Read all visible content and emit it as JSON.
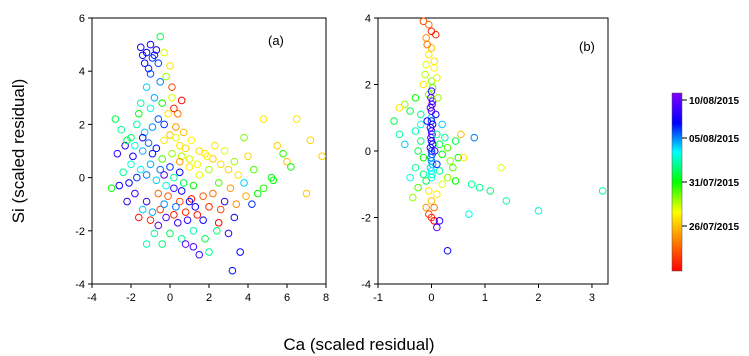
{
  "xlabel": "Ca (scaled residual)",
  "ylabel": "Si (scaled residual)",
  "colorbar": {
    "ticks": [
      "10/08/2015",
      "05/08/2015",
      "31/07/2015",
      "26/07/2015"
    ],
    "colors": [
      "#ff0000",
      "#ff8000",
      "#ffff00",
      "#00ff00",
      "#00ffff",
      "#0000ff",
      "#8000ff"
    ]
  },
  "chart_data": [
    {
      "type": "scatter",
      "panel_label": "(a)",
      "xlim": [
        -4,
        8
      ],
      "ylim": [
        -4,
        6
      ],
      "xticks": [
        "-4",
        "-2",
        "0",
        "2",
        "4",
        "6",
        "8"
      ],
      "yticks": [
        "-4",
        "-2",
        "0",
        "2",
        "4",
        "6"
      ],
      "grid": false,
      "points_note": "color encodes date position t (0 = 26/07/2015 red, 1 = 10/08/2015 violet)",
      "points": [
        [
          -1.5,
          4.9,
          0.85
        ],
        [
          -1.2,
          4.7,
          0.84
        ],
        [
          -1.0,
          5.0,
          0.86
        ],
        [
          -0.8,
          4.6,
          0.82
        ],
        [
          -1.3,
          4.3,
          0.83
        ],
        [
          -0.9,
          4.5,
          0.8
        ],
        [
          -1.1,
          4.1,
          0.81
        ],
        [
          -0.7,
          4.8,
          0.87
        ],
        [
          -1.4,
          4.6,
          0.84
        ],
        [
          -0.6,
          4.3,
          0.79
        ],
        [
          -1.0,
          3.9,
          0.78
        ],
        [
          -0.5,
          5.3,
          0.55
        ],
        [
          -0.3,
          4.7,
          0.35
        ],
        [
          0.0,
          4.2,
          0.3
        ],
        [
          -0.2,
          3.8,
          0.4
        ],
        [
          0.1,
          3.4,
          0.1
        ],
        [
          0.2,
          2.6,
          0.05
        ],
        [
          0.4,
          2.4,
          0.15
        ],
        [
          -0.5,
          3.6,
          0.75
        ],
        [
          -1.2,
          3.4,
          0.7
        ],
        [
          -0.8,
          3.0,
          0.72
        ],
        [
          -1.5,
          2.8,
          0.6
        ],
        [
          -1.0,
          2.6,
          0.65
        ],
        [
          -0.4,
          2.8,
          0.5
        ],
        [
          -2.8,
          2.2,
          0.55
        ],
        [
          -2.5,
          1.8,
          0.6
        ],
        [
          -2.0,
          1.5,
          0.58
        ],
        [
          -1.7,
          2.0,
          0.62
        ],
        [
          -1.3,
          1.7,
          0.7
        ],
        [
          -0.9,
          1.9,
          0.74
        ],
        [
          -0.6,
          2.2,
          0.78
        ],
        [
          -0.3,
          2.0,
          0.8
        ],
        [
          -1.8,
          1.2,
          0.66
        ],
        [
          -1.4,
          1.0,
          0.72
        ],
        [
          -1.1,
          1.3,
          0.76
        ],
        [
          -0.7,
          1.1,
          0.82
        ],
        [
          -0.3,
          1.4,
          0.3
        ],
        [
          0.0,
          1.6,
          0.25
        ],
        [
          0.3,
          1.5,
          0.35
        ],
        [
          0.5,
          1.2,
          0.3
        ],
        [
          0.8,
          1.1,
          0.28
        ],
        [
          1.1,
          1.4,
          0.32
        ],
        [
          1.5,
          1.0,
          0.28
        ],
        [
          1.8,
          0.9,
          0.3
        ],
        [
          2.2,
          0.7,
          0.26
        ],
        [
          2.6,
          0.5,
          0.29
        ],
        [
          3.0,
          0.3,
          0.27
        ],
        [
          3.5,
          0.1,
          0.3
        ],
        [
          4.0,
          0.8,
          0.28
        ],
        [
          4.8,
          2.2,
          0.3
        ],
        [
          5.5,
          1.2,
          0.27
        ],
        [
          6.0,
          0.6,
          0.25
        ],
        [
          6.5,
          2.2,
          0.3
        ],
        [
          7.2,
          1.4,
          0.28
        ],
        [
          7.8,
          0.8,
          0.27
        ],
        [
          8.2,
          0.1,
          0.28
        ],
        [
          7.0,
          -0.6,
          0.26
        ],
        [
          6.2,
          0.4,
          0.5
        ],
        [
          5.2,
          0.0,
          0.52
        ],
        [
          4.5,
          -0.6,
          0.5
        ],
        [
          5.8,
          0.9,
          0.48
        ],
        [
          3.8,
          -0.2,
          0.7
        ],
        [
          4.2,
          -1.0,
          0.8
        ],
        [
          3.3,
          -1.5,
          0.85
        ],
        [
          2.8,
          -0.9,
          0.9
        ],
        [
          3.0,
          -2.1,
          0.88
        ],
        [
          3.6,
          -2.8,
          0.84
        ],
        [
          3.2,
          -3.5,
          0.82
        ],
        [
          2.0,
          -2.8,
          0.6
        ],
        [
          1.8,
          -2.3,
          0.55
        ],
        [
          2.4,
          -2.0,
          0.58
        ],
        [
          1.2,
          -2.0,
          0.62
        ],
        [
          0.6,
          -2.3,
          0.6
        ],
        [
          0.0,
          -2.1,
          0.56
        ],
        [
          -0.4,
          -2.5,
          0.58
        ],
        [
          -0.8,
          -2.1,
          0.6
        ],
        [
          -1.2,
          -2.5,
          0.62
        ],
        [
          1.5,
          -2.9,
          0.9
        ],
        [
          -1.0,
          -1.6,
          0.05
        ],
        [
          -1.6,
          -1.5,
          0.02
        ],
        [
          -0.5,
          -1.2,
          0.08
        ],
        [
          0.2,
          -1.4,
          0.04
        ],
        [
          0.8,
          -1.3,
          0.06
        ],
        [
          1.4,
          -1.4,
          0.03
        ],
        [
          2.0,
          -1.1,
          0.05
        ],
        [
          2.5,
          -1.7,
          0.0
        ],
        [
          1.1,
          -0.8,
          0.02
        ],
        [
          0.5,
          -0.9,
          0.1
        ],
        [
          -0.1,
          -0.7,
          0.12
        ],
        [
          -0.6,
          -0.6,
          0.14
        ],
        [
          -1.2,
          -0.9,
          0.9
        ],
        [
          -1.8,
          -0.6,
          0.92
        ],
        [
          -2.2,
          -0.9,
          0.88
        ],
        [
          -2.6,
          -0.3,
          0.86
        ],
        [
          -3.0,
          -0.4,
          0.5
        ],
        [
          -2.4,
          0.2,
          0.6
        ],
        [
          -2.0,
          0.5,
          0.64
        ],
        [
          -1.5,
          0.3,
          0.68
        ],
        [
          -1.0,
          0.5,
          0.72
        ],
        [
          -0.5,
          0.3,
          0.76
        ],
        [
          0.0,
          0.4,
          0.8
        ],
        [
          0.5,
          0.2,
          0.84
        ],
        [
          1.0,
          0.4,
          0.3
        ],
        [
          1.5,
          0.1,
          0.35
        ],
        [
          2.0,
          0.3,
          0.4
        ],
        [
          2.5,
          -0.2,
          0.45
        ],
        [
          1.2,
          -0.3,
          0.5
        ],
        [
          0.7,
          -0.2,
          0.55
        ],
        [
          0.2,
          0.0,
          0.6
        ],
        [
          -0.2,
          -0.3,
          0.65
        ],
        [
          -0.7,
          -0.1,
          0.7
        ],
        [
          -1.2,
          0.1,
          0.75
        ],
        [
          -1.7,
          0.0,
          0.8
        ],
        [
          -2.1,
          -0.2,
          0.85
        ],
        [
          -2.7,
          0.9,
          0.9
        ],
        [
          -2.3,
          1.2,
          0.88
        ],
        [
          -1.9,
          0.8,
          0.86
        ],
        [
          -1.4,
          1.5,
          0.84
        ],
        [
          -0.9,
          0.9,
          0.82
        ],
        [
          -0.4,
          0.7,
          0.45
        ],
        [
          0.1,
          0.9,
          0.4
        ],
        [
          0.6,
          0.8,
          0.38
        ],
        [
          1.0,
          0.7,
          0.36
        ],
        [
          1.4,
          0.5,
          0.34
        ],
        [
          1.9,
          0.8,
          0.32
        ],
        [
          2.3,
          1.2,
          0.3
        ],
        [
          2.8,
          1.0,
          0.35
        ],
        [
          3.3,
          0.6,
          0.4
        ],
        [
          3.8,
          1.5,
          0.42
        ],
        [
          4.3,
          0.3,
          0.45
        ],
        [
          4.8,
          -0.4,
          0.48
        ],
        [
          5.3,
          -0.1,
          0.5
        ],
        [
          2.2,
          -0.6,
          0.15
        ],
        [
          1.7,
          -0.7,
          0.12
        ],
        [
          2.6,
          -1.2,
          0.1
        ],
        [
          3.1,
          -0.4,
          0.2
        ],
        [
          3.4,
          -1.0,
          0.18
        ],
        [
          3.9,
          -0.7,
          0.22
        ],
        [
          -0.6,
          -1.8,
          0.95
        ],
        [
          -0.2,
          -1.5,
          0.92
        ],
        [
          0.4,
          -1.7,
          0.9
        ],
        [
          0.9,
          -1.6,
          0.88
        ],
        [
          1.3,
          -1.1,
          0.86
        ],
        [
          1.7,
          -1.6,
          0.84
        ],
        [
          0.8,
          -2.5,
          0.95
        ],
        [
          1.2,
          -2.6,
          0.92
        ],
        [
          -1.4,
          -1.2,
          0.7
        ],
        [
          -0.9,
          -1.3,
          0.72
        ],
        [
          -0.3,
          -1.0,
          0.74
        ],
        [
          0.3,
          -1.1,
          0.76
        ],
        [
          0.5,
          0.6,
          0.2
        ],
        [
          0.3,
          1.9,
          0.2
        ],
        [
          0.7,
          1.7,
          0.25
        ],
        [
          -0.1,
          2.4,
          0.3
        ],
        [
          0.1,
          3.0,
          0.35
        ],
        [
          0.6,
          2.9,
          0.0
        ],
        [
          -0.3,
          0.1,
          0.95
        ],
        [
          0.2,
          -0.4,
          0.9
        ],
        [
          0.6,
          -0.5,
          0.86
        ],
        [
          1.0,
          -0.9,
          0.83
        ],
        [
          -2.2,
          1.4,
          0.55
        ],
        [
          -1.6,
          2.4,
          0.5
        ]
      ]
    },
    {
      "type": "scatter",
      "panel_label": "(b)",
      "xlim": [
        -1,
        3.3
      ],
      "ylim": [
        -4,
        4
      ],
      "xticks": [
        "-1",
        "0",
        "1",
        "2",
        "3"
      ],
      "yticks": [
        "-4",
        "-2",
        "0",
        "2",
        "4"
      ],
      "grid": false,
      "points_note": "color encodes date position t (0 = 26/07/2015 red, 1 = 10/08/2015 violet)",
      "points": [
        [
          -0.15,
          3.9,
          0.1
        ],
        [
          -0.05,
          3.8,
          0.15
        ],
        [
          0.0,
          3.6,
          0.05
        ],
        [
          -0.1,
          3.4,
          0.2
        ],
        [
          0.0,
          3.1,
          0.25
        ],
        [
          -0.05,
          2.9,
          0.3
        ],
        [
          -0.1,
          2.6,
          0.35
        ],
        [
          0.05,
          2.5,
          0.32
        ],
        [
          -0.12,
          2.3,
          0.38
        ],
        [
          0.0,
          2.1,
          0.4
        ],
        [
          0.02,
          1.9,
          0.45
        ],
        [
          -0.05,
          1.7,
          0.42
        ],
        [
          -0.3,
          1.6,
          0.5
        ],
        [
          -0.5,
          1.4,
          0.4
        ],
        [
          -0.6,
          1.3,
          0.3
        ],
        [
          -0.4,
          1.2,
          0.55
        ],
        [
          -0.2,
          1.1,
          0.6
        ],
        [
          0.0,
          1.0,
          0.7
        ],
        [
          0.0,
          0.9,
          0.8
        ],
        [
          0.02,
          0.8,
          0.85
        ],
        [
          -0.02,
          0.7,
          0.9
        ],
        [
          0.0,
          0.6,
          0.88
        ],
        [
          0.01,
          0.5,
          0.92
        ],
        [
          -0.01,
          0.4,
          0.9
        ],
        [
          0.0,
          0.3,
          0.86
        ],
        [
          0.02,
          0.2,
          0.84
        ],
        [
          -0.02,
          0.1,
          0.82
        ],
        [
          0.0,
          0.0,
          0.8
        ],
        [
          0.01,
          -0.1,
          0.78
        ],
        [
          -0.01,
          -0.2,
          0.76
        ],
        [
          0.0,
          -0.3,
          0.74
        ],
        [
          0.02,
          -0.4,
          0.72
        ],
        [
          -0.02,
          -0.5,
          0.7
        ],
        [
          0.0,
          -0.6,
          0.68
        ],
        [
          0.01,
          -0.7,
          0.66
        ],
        [
          0.0,
          -0.8,
          0.64
        ],
        [
          0.0,
          1.2,
          0.95
        ],
        [
          0.01,
          1.4,
          0.93
        ],
        [
          -0.01,
          1.6,
          0.94
        ],
        [
          0.0,
          1.8,
          0.92
        ],
        [
          0.02,
          1.5,
          0.9
        ],
        [
          -0.02,
          1.3,
          0.91
        ],
        [
          0.1,
          0.5,
          0.6
        ],
        [
          0.15,
          0.2,
          0.55
        ],
        [
          0.2,
          -0.1,
          0.5
        ],
        [
          0.3,
          0.1,
          0.45
        ],
        [
          0.35,
          -0.3,
          0.4
        ],
        [
          0.45,
          0.3,
          0.55
        ],
        [
          0.5,
          -0.2,
          0.5
        ],
        [
          0.4,
          -0.5,
          0.45
        ],
        [
          0.3,
          -0.8,
          0.4
        ],
        [
          0.2,
          -1.0,
          0.35
        ],
        [
          0.1,
          -1.3,
          0.3
        ],
        [
          0.0,
          -1.5,
          0.25
        ],
        [
          -0.1,
          -1.7,
          0.2
        ],
        [
          -0.05,
          -1.9,
          0.1
        ],
        [
          0.0,
          -2.0,
          0.05
        ],
        [
          0.05,
          -2.1,
          0.0
        ],
        [
          0.1,
          -2.3,
          0.95
        ],
        [
          0.15,
          -2.1,
          0.9
        ],
        [
          0.3,
          -3.0,
          0.85
        ],
        [
          -0.3,
          -0.5,
          0.6
        ],
        [
          -0.4,
          -0.8,
          0.65
        ],
        [
          -0.5,
          0.2,
          0.7
        ],
        [
          -0.6,
          0.5,
          0.6
        ],
        [
          -0.7,
          0.9,
          0.55
        ],
        [
          -0.3,
          0.6,
          0.62
        ],
        [
          -0.2,
          0.3,
          0.58
        ],
        [
          -0.15,
          -0.2,
          0.5
        ],
        [
          -0.25,
          -1.1,
          0.45
        ],
        [
          -0.35,
          -1.4,
          0.4
        ],
        [
          -0.1,
          -0.9,
          0.55
        ],
        [
          0.8,
          0.4,
          0.75
        ],
        [
          0.9,
          -1.1,
          0.6
        ],
        [
          1.1,
          -1.2,
          0.58
        ],
        [
          1.4,
          -1.5,
          0.62
        ],
        [
          2.0,
          -1.8,
          0.65
        ],
        [
          3.2,
          -1.2,
          0.6
        ],
        [
          0.75,
          -1.0,
          0.6
        ],
        [
          0.7,
          -1.9,
          0.65
        ],
        [
          1.3,
          -0.5,
          0.35
        ],
        [
          0.6,
          -0.2,
          0.3
        ],
        [
          0.55,
          0.5,
          0.25
        ],
        [
          0.45,
          -0.9,
          0.5
        ],
        [
          0.05,
          2.7,
          0.3
        ],
        [
          0.08,
          3.5,
          0.05
        ],
        [
          -0.08,
          3.2,
          0.15
        ],
        [
          0.1,
          2.2,
          0.35
        ],
        [
          -0.15,
          2.0,
          0.3
        ],
        [
          0.12,
          1.6,
          0.4
        ],
        [
          -0.2,
          0.8,
          0.65
        ],
        [
          0.2,
          0.8,
          0.7
        ],
        [
          0.25,
          0.4,
          0.6
        ],
        [
          -0.25,
          0.0,
          0.55
        ],
        [
          0.15,
          -0.6,
          0.6
        ],
        [
          -0.15,
          -0.7,
          0.58
        ],
        [
          0.05,
          -1.7,
          0.15
        ],
        [
          -0.05,
          -1.2,
          0.3
        ],
        [
          0.1,
          -0.4,
          0.8
        ],
        [
          -0.08,
          0.9,
          0.85
        ],
        [
          0.08,
          1.1,
          0.88
        ],
        [
          0.06,
          0.0,
          0.92
        ]
      ]
    }
  ]
}
